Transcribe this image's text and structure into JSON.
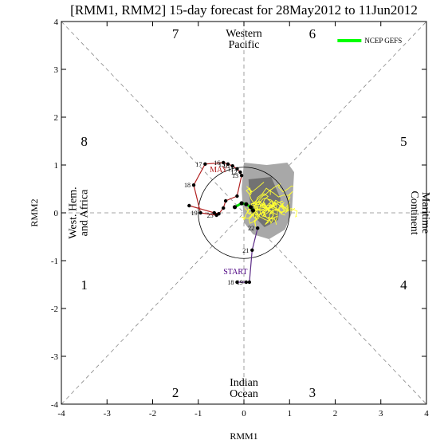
{
  "chart_data": {
    "type": "line",
    "title": "[RMM1, RMM2] 15-day forecast for 28May2012 to 11Jun2012",
    "xlabel": "RMM1",
    "ylabel": "RMM2",
    "xlim": [
      -4,
      4
    ],
    "ylim": [
      -4,
      4
    ],
    "xticks": [
      "-4",
      "-3",
      "-2",
      "-1",
      "0",
      "1",
      "2",
      "3",
      "4"
    ],
    "yticks": [
      "-4",
      "-3",
      "-2",
      "-1",
      "0",
      "1",
      "2",
      "3",
      "4"
    ],
    "legend": {
      "label": "NCEP GEFS",
      "color": "#00ff00",
      "placement": "top-right"
    },
    "phase_labels": [
      {
        "text": "1",
        "x": -3.5,
        "y": -1.5
      },
      {
        "text": "2",
        "x": -1.5,
        "y": -3.75
      },
      {
        "text": "3",
        "x": 1.5,
        "y": -3.75
      },
      {
        "text": "4",
        "x": 3.5,
        "y": -1.5
      },
      {
        "text": "5",
        "x": 3.5,
        "y": 1.5
      },
      {
        "text": "6",
        "x": 1.5,
        "y": 3.75
      },
      {
        "text": "7",
        "x": -1.5,
        "y": 3.75
      },
      {
        "text": "8",
        "x": -3.5,
        "y": 1.5
      }
    ],
    "region_labels": {
      "top": [
        "Western",
        "Pacific"
      ],
      "bottom": [
        "Indian",
        "Ocean"
      ],
      "left": [
        "West. Hem.",
        "and Africa"
      ],
      "right": [
        "Maritime",
        "Continent"
      ]
    },
    "annotations": {
      "start": "START",
      "may": "MAY"
    },
    "observed_path": {
      "purple": {
        "x": [
          -0.15,
          0.05,
          0.12,
          0.18,
          0.3
        ],
        "y": [
          -1.45,
          -1.45,
          -1.45,
          -0.78,
          -0.32
        ],
        "labels": [
          "18",
          "19",
          "",
          "21",
          "22"
        ]
      },
      "red": {
        "x": [
          -0.6,
          -0.95,
          -1.1,
          -0.85,
          -0.45,
          -0.35,
          -0.25,
          -0.15,
          -0.08,
          -0.05,
          -0.15,
          -0.4,
          -0.45,
          -0.55,
          -0.65,
          -1.2
        ],
        "y": [
          -0.05,
          0.0,
          0.58,
          1.02,
          1.05,
          1.02,
          0.98,
          0.92,
          0.85,
          0.78,
          0.35,
          0.25,
          0.1,
          -0.02,
          0.0,
          0.15
        ],
        "labels": [
          "25",
          "19",
          "18",
          "17",
          "16",
          "15",
          "10",
          "11",
          "12",
          "13",
          "",
          "",
          "",
          "",
          "",
          ""
        ]
      }
    },
    "ensemble_mean": {
      "x": [
        -0.2,
        -0.05,
        0.05,
        0.15,
        0.2
      ],
      "y": [
        0.12,
        0.2,
        0.18,
        0.12,
        0.05
      ]
    },
    "shading": {
      "outer_color": "#a8a8a8",
      "inner_color": "#727272",
      "outer_polygon": {
        "x": [
          0.0,
          0.5,
          0.95,
          1.1,
          1.05,
          0.9,
          0.55,
          0.2,
          0.0,
          -0.05
        ],
        "y": [
          1.05,
          1.0,
          1.05,
          0.85,
          0.0,
          -0.35,
          -0.55,
          -0.45,
          -0.2,
          0.5
        ]
      },
      "inner_polygon": {
        "x": [
          0.1,
          0.6,
          0.8,
          0.75,
          0.45,
          0.15
        ],
        "y": [
          0.7,
          0.75,
          0.3,
          -0.15,
          -0.3,
          0.0
        ]
      }
    },
    "plume_color": "#ffff33",
    "reference_circle_radius": 1,
    "grid": false
  }
}
